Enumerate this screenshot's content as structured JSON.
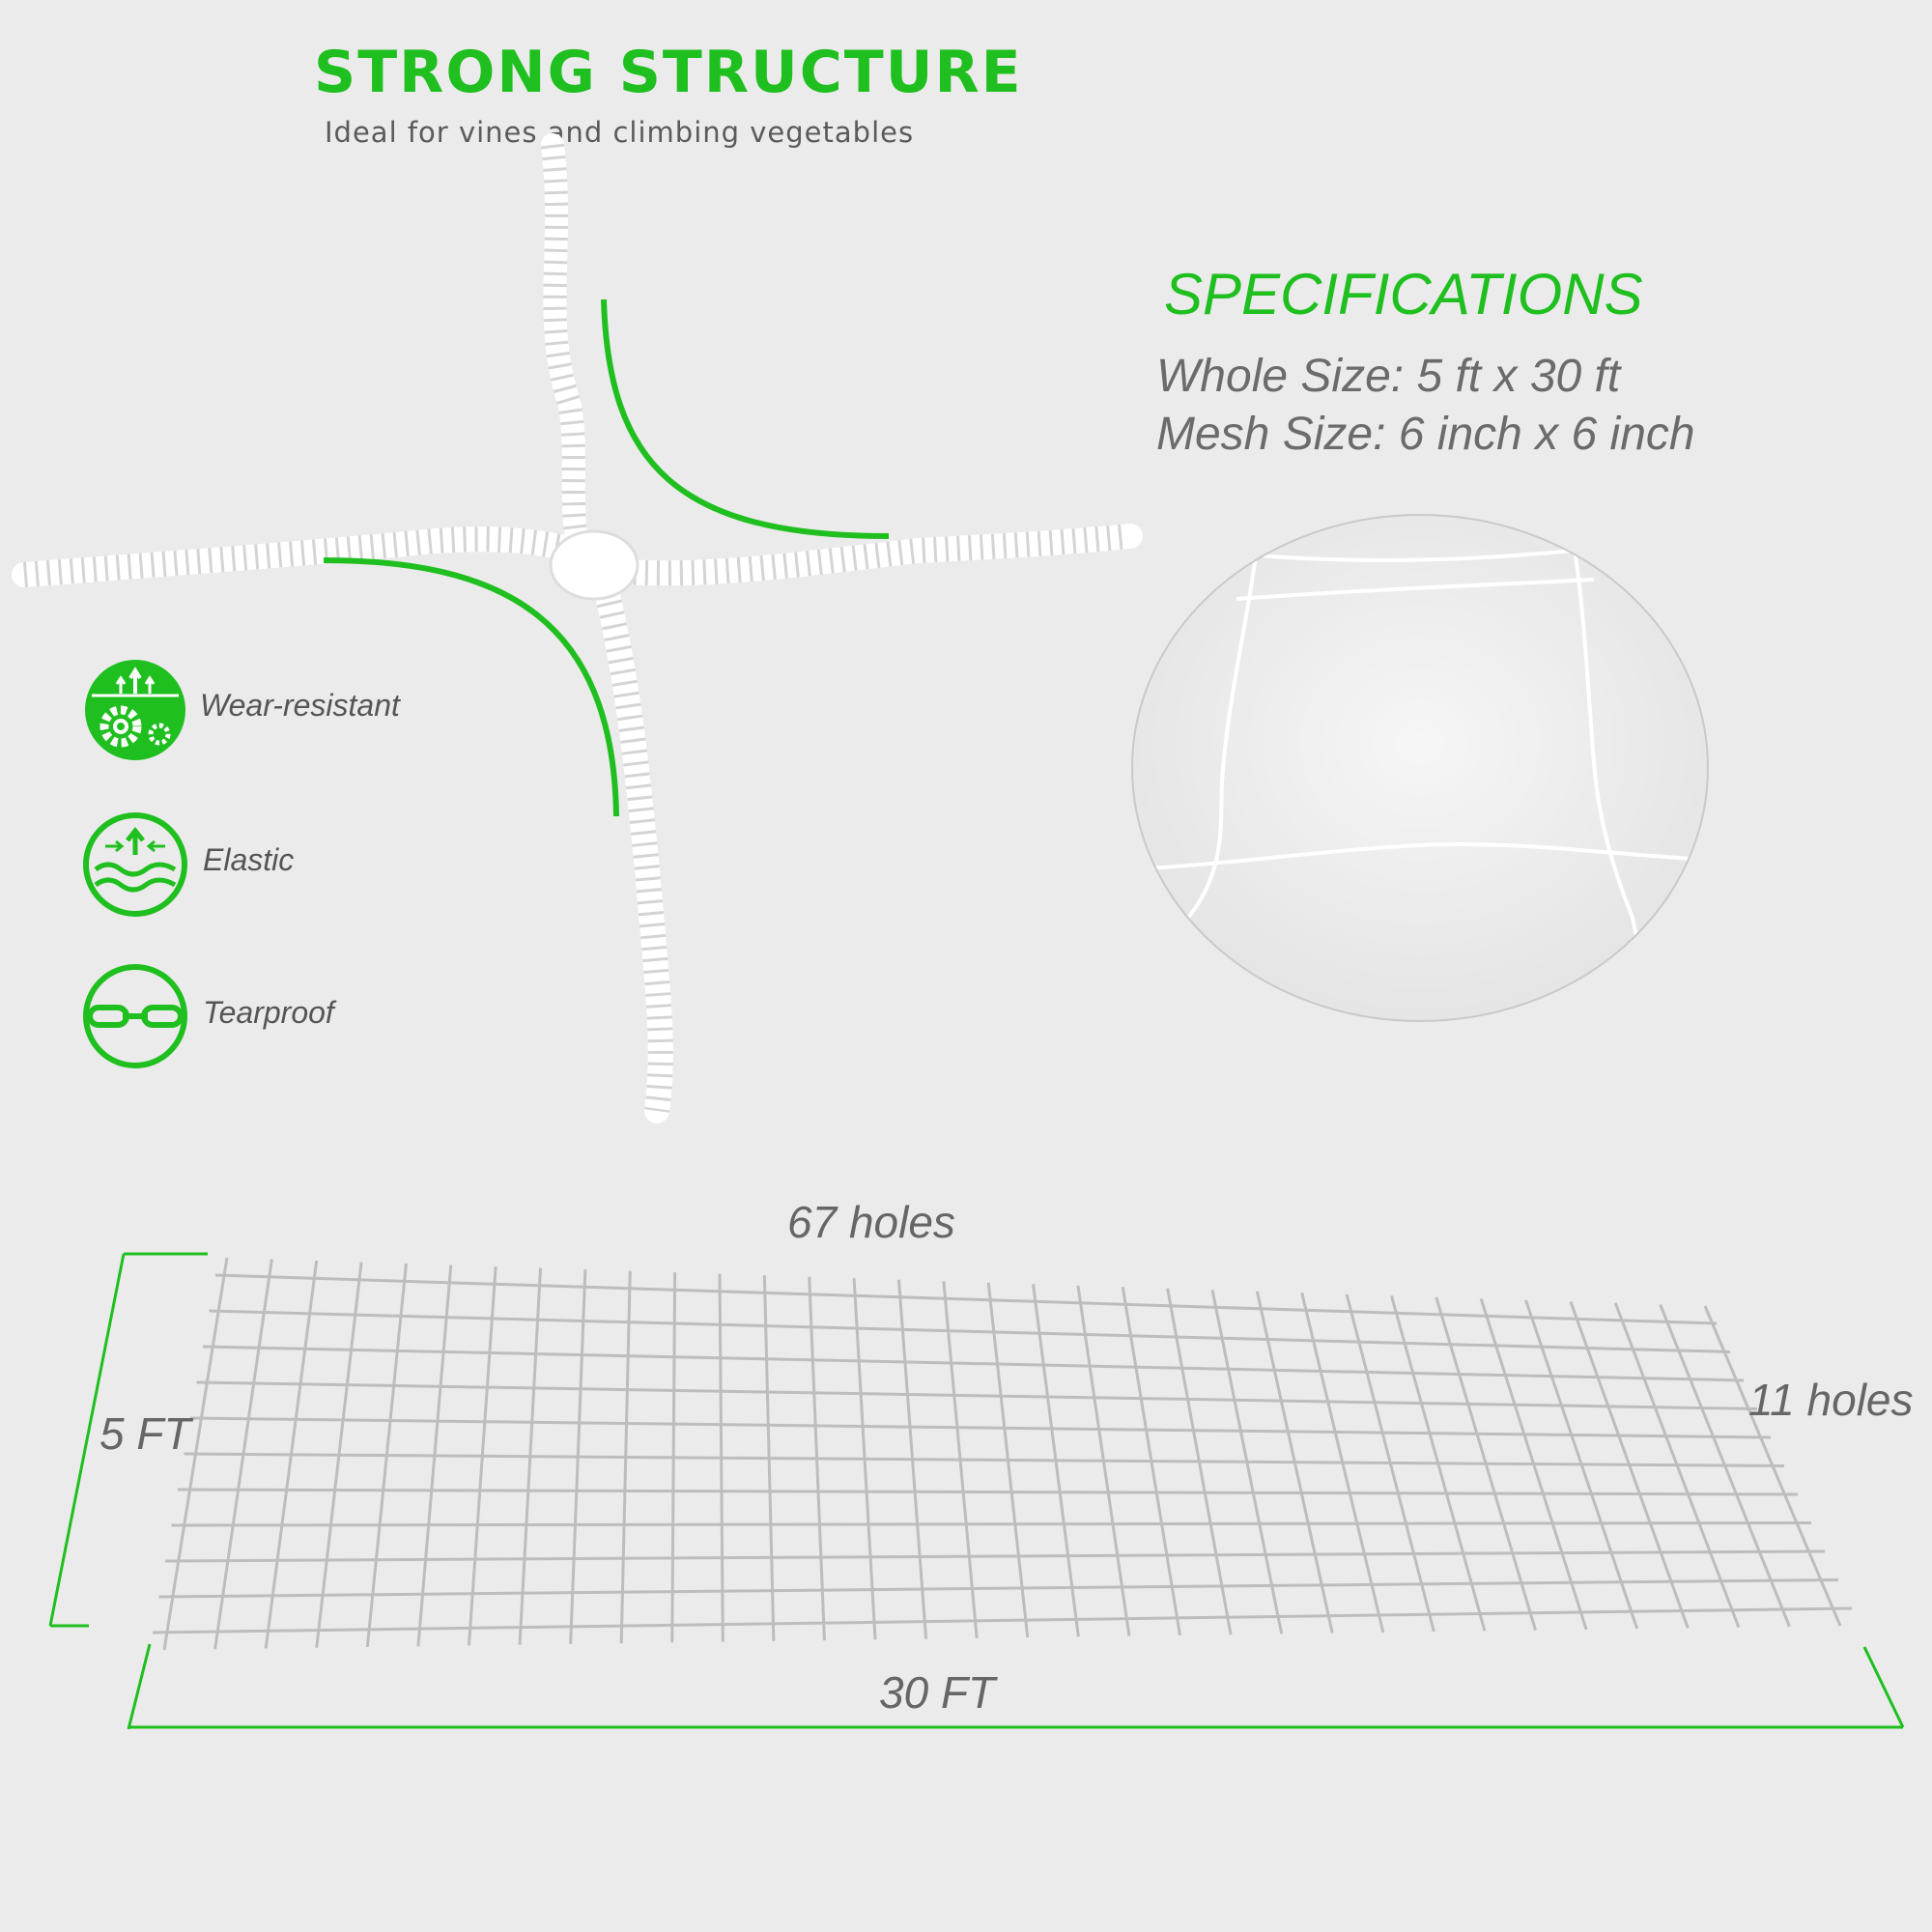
{
  "colors": {
    "accent": "#1fbf1f",
    "background": "#ebebeb",
    "text_gray": "#666666"
  },
  "header": {
    "title": "STRONG STRUCTURE",
    "subtitle": "Ideal for vines and climbing vegetables"
  },
  "specifications": {
    "title": "SPECIFICATIONS",
    "whole_size": "Whole Size: 5 ft x 30 ft",
    "mesh_size": "Mesh Size: 6 inch x 6 inch"
  },
  "features": [
    {
      "label": "Wear-resistant",
      "icon": "gears-icon"
    },
    {
      "label": "Elastic",
      "icon": "wave-arrows-icon"
    },
    {
      "label": "Tearproof",
      "icon": "chain-link-icon"
    }
  ],
  "dimensions": {
    "top_holes": "67 holes",
    "side_holes": "11 holes",
    "height": "5 FT",
    "width": "30 FT"
  }
}
